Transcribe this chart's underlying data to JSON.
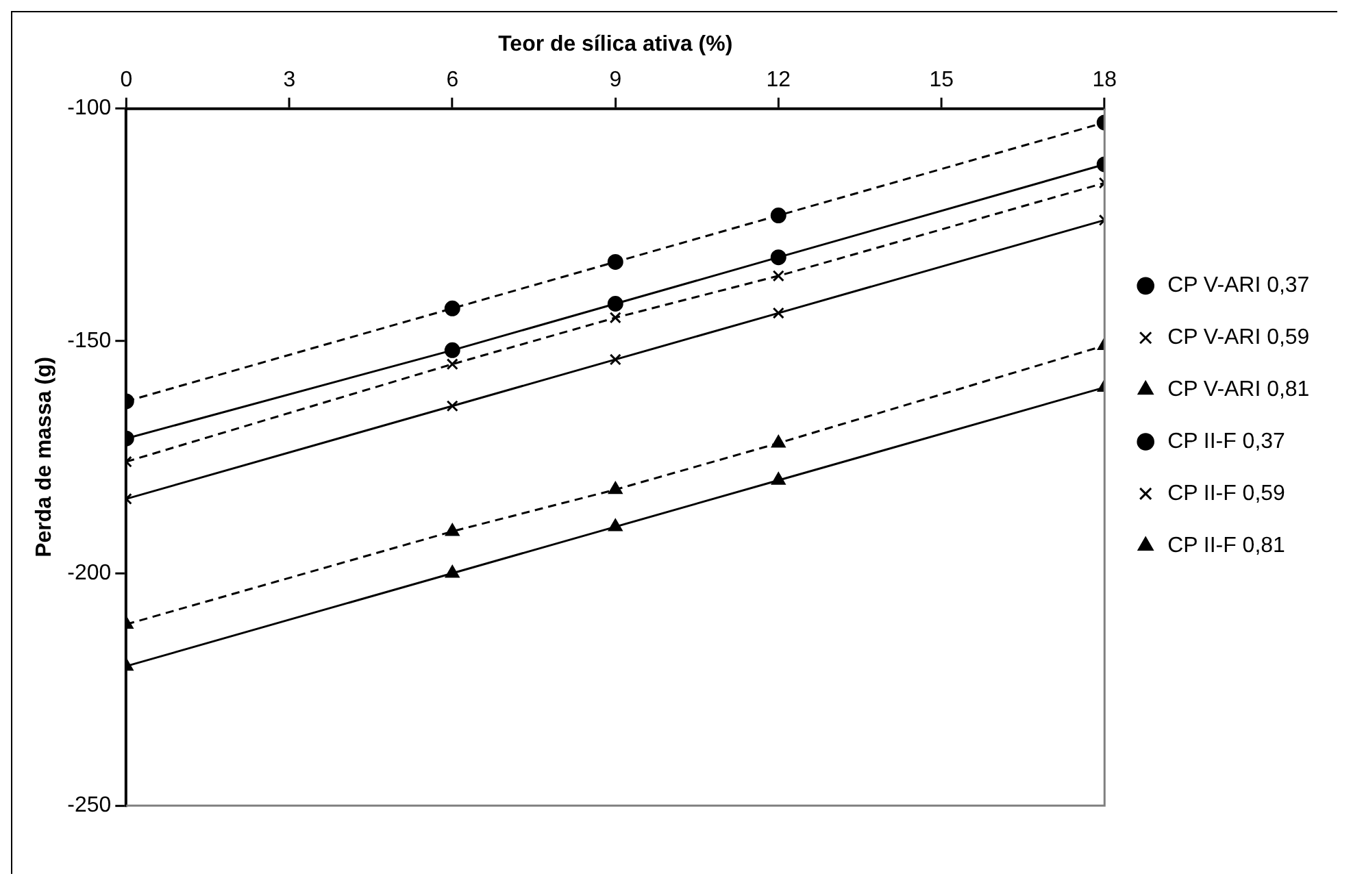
{
  "chart_data": {
    "type": "line",
    "xlabel": "Teor de sílica ativa (%)",
    "ylabel": "Perda de massa (g)",
    "x": [
      0,
      6,
      9,
      12,
      18
    ],
    "xlim": [
      0,
      18
    ],
    "xticks": [
      0,
      3,
      6,
      9,
      12,
      15,
      18
    ],
    "ylim": [
      -250,
      -100
    ],
    "yticks": [
      -250,
      -200,
      -150,
      -100
    ],
    "grid": false,
    "legend": "right",
    "series": [
      {
        "name": "CP V-ARI 0,37",
        "color": "#000000",
        "marker": "circle",
        "line_style": "solid",
        "values": [
          -171,
          -152,
          -142,
          -132,
          -112
        ]
      },
      {
        "name": "CP V-ARI 0,59",
        "color": "#000000",
        "marker": "cross",
        "line_style": "solid",
        "values": [
          -184,
          -164,
          -154,
          -144,
          -124
        ]
      },
      {
        "name": "CP V-ARI 0,81",
        "color": "#000000",
        "marker": "triangle",
        "line_style": "solid",
        "values": [
          -220,
          -200,
          -190,
          -180,
          -160
        ]
      },
      {
        "name": "CP II-F 0,37",
        "color": "#000000",
        "marker": "circle",
        "line_style": "dashed",
        "values": [
          -163,
          -143,
          -133,
          -123,
          -103
        ]
      },
      {
        "name": "CP II-F 0,59",
        "color": "#000000",
        "marker": "cross",
        "line_style": "dashed",
        "values": [
          -176,
          -155,
          -145,
          -136,
          -116
        ]
      },
      {
        "name": "CP II-F 0,81",
        "color": "#000000",
        "marker": "triangle",
        "line_style": "dashed",
        "values": [
          -211,
          -191,
          -182,
          -172,
          -151
        ]
      }
    ]
  }
}
